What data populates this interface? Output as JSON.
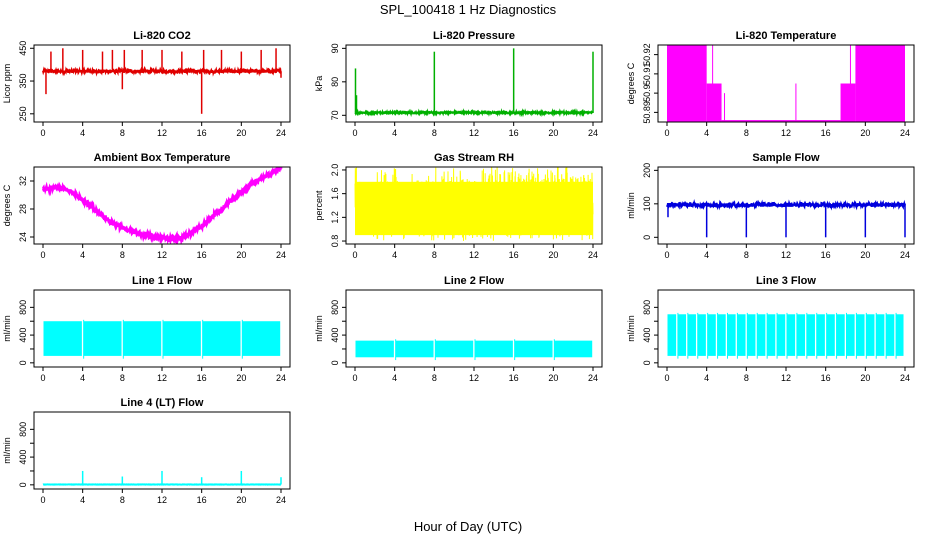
{
  "page": {
    "title": "SPL_100418  1 Hz Diagnostics",
    "xlabel": "Hour of Day (UTC)"
  },
  "chart_data": [
    {
      "type": "line",
      "title": "Li-820 CO2",
      "ylabel": "Licor ppm",
      "color": "#e00000",
      "x_ticks": [
        0,
        4,
        8,
        12,
        16,
        20,
        24
      ],
      "xlim": [
        0,
        24
      ],
      "y_ticks": [
        250,
        350,
        450
      ],
      "y_tick_labels": [
        "250",
        "350",
        "450"
      ],
      "ylim": [
        225,
        460
      ],
      "series": [
        {
          "baseline": 380,
          "noise": 5,
          "spikes": [
            [
              0.3,
              310
            ],
            [
              0.8,
              440
            ],
            [
              2.0,
              450
            ],
            [
              4.0,
              445
            ],
            [
              6.0,
              440
            ],
            [
              7.0,
              445
            ],
            [
              8.0,
              325
            ],
            [
              8.2,
              445
            ],
            [
              10.0,
              445
            ],
            [
              12.0,
              445
            ],
            [
              14.0,
              440
            ],
            [
              16.0,
              250
            ],
            [
              16.2,
              445
            ],
            [
              18.0,
              445
            ],
            [
              20.0,
              440
            ],
            [
              22.0,
              445
            ],
            [
              23.5,
              450
            ],
            [
              24,
              360
            ]
          ]
        }
      ]
    },
    {
      "type": "line",
      "title": "Li-820 Pressure",
      "ylabel": "kPa",
      "color": "#00b000",
      "x_ticks": [
        0,
        4,
        8,
        12,
        16,
        20,
        24
      ],
      "xlim": [
        0,
        24
      ],
      "y_ticks": [
        70,
        80,
        90
      ],
      "y_tick_labels": [
        "70",
        "80",
        "90"
      ],
      "ylim": [
        68,
        91
      ],
      "series": [
        {
          "baseline": 70.8,
          "noise": 0.25,
          "spikes": [
            [
              0.05,
              84
            ],
            [
              0.15,
              76
            ],
            [
              4.0,
              71.5
            ],
            [
              8.0,
              89
            ],
            [
              12.0,
              71.5
            ],
            [
              16.0,
              90
            ],
            [
              20.0,
              71.5
            ],
            [
              24.0,
              89
            ]
          ]
        }
      ]
    },
    {
      "type": "area",
      "title": "Li-820 Temperature",
      "ylabel": "degrees C",
      "color": "#ff00ff",
      "x_ticks": [
        0,
        4,
        8,
        12,
        16,
        20,
        24
      ],
      "xlim": [
        0,
        24
      ],
      "y_ticks": [
        50.89,
        50.9,
        50.91,
        50.92
      ],
      "y_tick_labels": [
        "50.89",
        "50.9",
        "50.91",
        "50.92"
      ],
      "ylim": [
        50.885,
        50.925
      ],
      "series": [
        {
          "bands": [
            [
              0,
              4.0,
              50.885,
              50.925
            ],
            [
              4.0,
              5.5,
              50.885,
              50.905
            ],
            [
              5.5,
              17.5,
              50.885,
              50.886
            ],
            [
              17.5,
              19.0,
              50.885,
              50.905
            ],
            [
              19.0,
              24,
              50.885,
              50.925
            ]
          ],
          "spikes": [
            [
              4.6,
              50.925
            ],
            [
              5.8,
              50.9
            ],
            [
              13.0,
              50.905
            ],
            [
              18.5,
              50.925
            ]
          ]
        }
      ]
    },
    {
      "type": "line",
      "title": "Ambient Box Temperature",
      "ylabel": "degrees C",
      "color": "#ff00ff",
      "x_ticks": [
        0,
        4,
        8,
        12,
        16,
        20,
        24
      ],
      "xlim": [
        0,
        24
      ],
      "y_ticks": [
        24,
        28,
        32
      ],
      "y_tick_labels": [
        "24",
        "28",
        "32"
      ],
      "ylim": [
        23,
        34
      ],
      "series": [
        {
          "points": [
            [
              0,
              30.8
            ],
            [
              1,
              31.0
            ],
            [
              2,
              31.0
            ],
            [
              3,
              30.4
            ],
            [
              4,
              29.3
            ],
            [
              5,
              28.2
            ],
            [
              6,
              27.0
            ],
            [
              7,
              26.0
            ],
            [
              8,
              25.3
            ],
            [
              9,
              24.8
            ],
            [
              10,
              24.4
            ],
            [
              11,
              24.1
            ],
            [
              12,
              23.9
            ],
            [
              13,
              23.8
            ],
            [
              14,
              23.9
            ],
            [
              15,
              24.6
            ],
            [
              16,
              25.6
            ],
            [
              17,
              26.8
            ],
            [
              18,
              28.0
            ],
            [
              19,
              29.2
            ],
            [
              20,
              30.4
            ],
            [
              21,
              31.5
            ],
            [
              22,
              32.4
            ],
            [
              23,
              33.1
            ],
            [
              24,
              33.8
            ]
          ],
          "noise": 0.25
        }
      ]
    },
    {
      "type": "area",
      "title": "Gas Stream RH",
      "ylabel": "percent",
      "color": "#ffff00",
      "x_ticks": [
        0,
        4,
        8,
        12,
        16,
        20,
        24
      ],
      "xlim": [
        0,
        24
      ],
      "y_ticks": [
        0.8,
        1.2,
        1.6,
        2.0
      ],
      "y_tick_labels": [
        "0.8",
        "1.2",
        "1.6",
        "2.0"
      ],
      "ylim": [
        0.75,
        2.05
      ],
      "series": [
        {
          "band_low": 0.9,
          "band_high": 1.8,
          "band_high_late": 1.9,
          "spike_max": 2.05,
          "spike_min": 0.8
        }
      ]
    },
    {
      "type": "line",
      "title": "Sample Flow",
      "ylabel": "ml/min",
      "color": "#0000dd",
      "x_ticks": [
        0,
        4,
        8,
        12,
        16,
        20,
        24
      ],
      "xlim": [
        0,
        24
      ],
      "y_ticks": [
        0,
        100,
        200
      ],
      "y_tick_labels": [
        "0",
        "100",
        "200"
      ],
      "ylim": [
        -20,
        210
      ],
      "series": [
        {
          "baseline": 97,
          "noise": 6,
          "spikes": [
            [
              0.1,
              60
            ],
            [
              4.0,
              0
            ],
            [
              8.0,
              0
            ],
            [
              12.0,
              0
            ],
            [
              16.0,
              0
            ],
            [
              20.0,
              0
            ],
            [
              24.0,
              0
            ]
          ]
        }
      ]
    },
    {
      "type": "area",
      "title": "Line 1 Flow",
      "ylabel": "ml/min",
      "color": "#00ffff",
      "x_ticks": [
        0,
        4,
        8,
        12,
        16,
        20,
        24
      ],
      "xlim": [
        0,
        24
      ],
      "y_ticks": [
        0,
        200,
        400,
        600,
        800
      ],
      "y_tick_labels": [
        "0",
        "400",
        "800"
      ],
      "ylim": [
        -60,
        1050
      ],
      "series": [
        {
          "band_low": 100,
          "band_high": 600,
          "gaps": [
            4.0,
            8.0,
            12.0,
            16.0,
            20.0,
            24.0
          ]
        }
      ]
    },
    {
      "type": "area",
      "title": "Line 2 Flow",
      "ylabel": "ml/min",
      "color": "#00ffff",
      "x_ticks": [
        0,
        4,
        8,
        12,
        16,
        20,
        24
      ],
      "xlim": [
        0,
        24
      ],
      "y_ticks": [
        0,
        200,
        400,
        600,
        800
      ],
      "y_tick_labels": [
        "0",
        "400",
        "800"
      ],
      "ylim": [
        -60,
        1050
      ],
      "series": [
        {
          "band_low": 80,
          "band_high": 320,
          "gaps": [
            4.0,
            8.0,
            12.0,
            16.0,
            20.0,
            24.0
          ]
        }
      ]
    },
    {
      "type": "area",
      "title": "Line 3 Flow",
      "ylabel": "ml/min",
      "color": "#00ffff",
      "x_ticks": [
        0,
        4,
        8,
        12,
        16,
        20,
        24
      ],
      "xlim": [
        0,
        24
      ],
      "y_ticks": [
        0,
        200,
        400,
        600,
        800
      ],
      "y_tick_labels": [
        "0",
        "400",
        "800"
      ],
      "ylim": [
        -60,
        1050
      ],
      "series": [
        {
          "band_low": 100,
          "band_high": 700,
          "gaps": [
            1.0,
            2.0,
            3.0,
            4.0,
            5.0,
            6.0,
            7.0,
            8.0,
            9.0,
            10.0,
            11.0,
            12.0,
            13.0,
            14.0,
            15.0,
            16.0,
            17.0,
            18.0,
            19.0,
            20.0,
            21.0,
            22.0,
            23.0
          ]
        }
      ]
    },
    {
      "type": "line",
      "title": "Line 4 (LT) Flow",
      "ylabel": "ml/min",
      "color": "#00ffff",
      "x_ticks": [
        0,
        4,
        8,
        12,
        16,
        20,
        24
      ],
      "xlim": [
        0,
        24
      ],
      "y_ticks": [
        0,
        200,
        400,
        600,
        800
      ],
      "y_tick_labels": [
        "0",
        "400",
        "800"
      ],
      "ylim": [
        -60,
        1050
      ],
      "series": [
        {
          "baseline": 5,
          "noise": 2,
          "spikes": [
            [
              4.0,
              200
            ],
            [
              8.0,
              120
            ],
            [
              12.0,
              200
            ],
            [
              16.0,
              110
            ],
            [
              20.0,
              200
            ],
            [
              24.0,
              110
            ]
          ]
        }
      ]
    }
  ]
}
